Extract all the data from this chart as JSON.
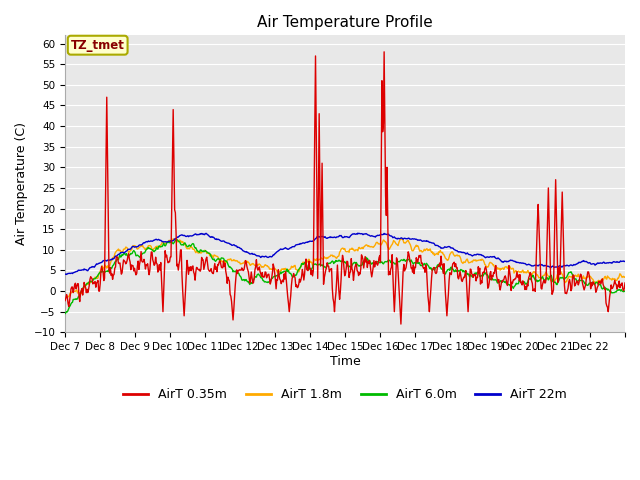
{
  "title": "Air Temperature Profile",
  "xlabel": "Time",
  "ylabel": "Air Temperature (C)",
  "ylim": [
    -10,
    62
  ],
  "yticks": [
    -10,
    -5,
    0,
    5,
    10,
    15,
    20,
    25,
    30,
    35,
    40,
    45,
    50,
    55,
    60
  ],
  "fig_bg": "#ffffff",
  "plot_bg": "#e8e8e8",
  "grid_color": "#ffffff",
  "colors": {
    "AirT_035": "#dd0000",
    "AirT_18": "#ffaa00",
    "AirT_60": "#00bb00",
    "AirT_22": "#0000cc"
  },
  "legend_labels": [
    "AirT 0.35m",
    "AirT 1.8m",
    "AirT 6.0m",
    "AirT 22m"
  ],
  "annotation_text": "TZ_tmet",
  "annotation_color": "#880000",
  "annotation_bg": "#ffffcc",
  "annotation_edge": "#aaaa00",
  "x_tick_labels": [
    "Dec 7",
    "Dec 8",
    "Dec 9",
    "Dec 10",
    "Dec 11",
    "Dec 12",
    "Dec 13",
    "Dec 14",
    "Dec 15",
    "Dec 16",
    "Dec 17",
    "Dec 18",
    "Dec 19",
    "Dec 20",
    "Dec 21",
    "Dec 22"
  ],
  "n_days": 16,
  "pts_per_day": 48
}
